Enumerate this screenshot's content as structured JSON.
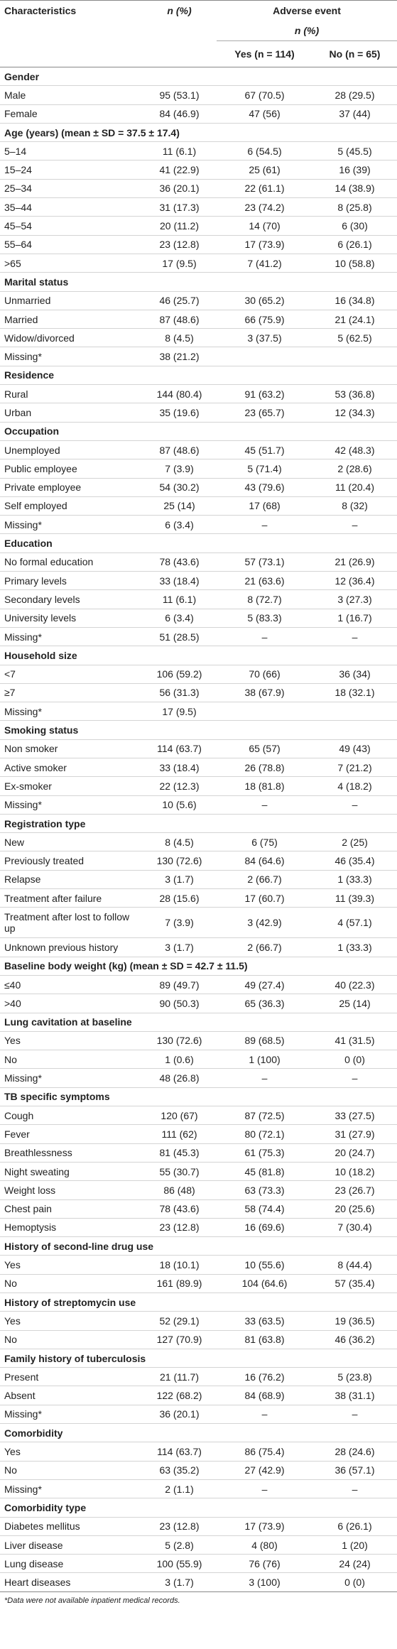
{
  "header": {
    "characteristics": "Characteristics",
    "n": "n (%)",
    "group": "Adverse event",
    "group_sub": "n (%)",
    "yes": "Yes (n = 114)",
    "no": "No (n = 65)"
  },
  "sections": [
    {
      "title": "Gender",
      "rows": [
        [
          "Male",
          "95 (53.1)",
          "67 (70.5)",
          "28 (29.5)"
        ],
        [
          "Female",
          "84 (46.9)",
          "47 (56)",
          "37 (44)"
        ]
      ]
    },
    {
      "title": "Age (years) (mean ± SD = 37.5 ± 17.4)",
      "rows": [
        [
          "5–14",
          "11 (6.1)",
          "6 (54.5)",
          "5 (45.5)"
        ],
        [
          "15–24",
          "41 (22.9)",
          "25 (61)",
          "16 (39)"
        ],
        [
          "25–34",
          "36 (20.1)",
          "22 (61.1)",
          "14 (38.9)"
        ],
        [
          "35–44",
          "31 (17.3)",
          "23 (74.2)",
          "8 (25.8)"
        ],
        [
          "45–54",
          "20 (11.2)",
          "14 (70)",
          "6 (30)"
        ],
        [
          "55–64",
          "23 (12.8)",
          "17 (73.9)",
          "6 (26.1)"
        ],
        [
          ">65",
          "17 (9.5)",
          "7 (41.2)",
          "10 (58.8)"
        ]
      ]
    },
    {
      "title": "Marital status",
      "rows": [
        [
          "Unmarried",
          "46 (25.7)",
          "30 (65.2)",
          "16 (34.8)"
        ],
        [
          "Married",
          "87 (48.6)",
          "66 (75.9)",
          "21 (24.1)"
        ],
        [
          "Widow/divorced",
          "8 (4.5)",
          "3 (37.5)",
          "5 (62.5)"
        ],
        [
          "Missing*",
          "38 (21.2)"
        ]
      ]
    },
    {
      "title": "Residence",
      "rows": [
        [
          "Rural",
          "144 (80.4)",
          "91 (63.2)",
          "53 (36.8)"
        ],
        [
          "Urban",
          "35 (19.6)",
          "23 (65.7)",
          "12 (34.3)"
        ]
      ]
    },
    {
      "title": "Occupation",
      "rows": [
        [
          "Unemployed",
          "87 (48.6)",
          "45 (51.7)",
          "42 (48.3)"
        ],
        [
          "Public employee",
          "7 (3.9)",
          "5 (71.4)",
          "2 (28.6)"
        ],
        [
          "Private employee",
          "54 (30.2)",
          "43 (79.6)",
          "11 (20.4)"
        ],
        [
          "Self employed",
          "25 (14)",
          "17 (68)",
          "8 (32)"
        ],
        [
          "Missing*",
          "6 (3.4)",
          "–",
          "–"
        ]
      ]
    },
    {
      "title": "Education",
      "rows": [
        [
          "No formal education",
          "78 (43.6)",
          "57 (73.1)",
          "21 (26.9)"
        ],
        [
          "Primary levels",
          "33 (18.4)",
          "21 (63.6)",
          "12 (36.4)"
        ],
        [
          "Secondary levels",
          "11 (6.1)",
          "8 (72.7)",
          "3 (27.3)"
        ],
        [
          "University levels",
          "6 (3.4)",
          "5 (83.3)",
          "1 (16.7)"
        ],
        [
          "Missing*",
          "51 (28.5)",
          "–",
          "–"
        ]
      ]
    },
    {
      "title": "Household size",
      "rows": [
        [
          "<7",
          "106 (59.2)",
          "70 (66)",
          "36 (34)"
        ],
        [
          "≥7",
          "56 (31.3)",
          "38 (67.9)",
          "18 (32.1)"
        ],
        [
          "Missing*",
          "17 (9.5)"
        ]
      ]
    },
    {
      "title": "Smoking status",
      "rows": [
        [
          "Non smoker",
          "114 (63.7)",
          "65 (57)",
          "49 (43)"
        ],
        [
          "Active smoker",
          "33 (18.4)",
          "26 (78.8)",
          "7 (21.2)"
        ],
        [
          "Ex-smoker",
          "22 (12.3)",
          "18 (81.8)",
          "4 (18.2)"
        ],
        [
          "Missing*",
          "10 (5.6)",
          "–",
          "–"
        ]
      ]
    },
    {
      "title": "Registration type",
      "rows": [
        [
          "New",
          "8 (4.5)",
          "6 (75)",
          "2 (25)"
        ],
        [
          "Previously treated",
          "130 (72.6)",
          "84 (64.6)",
          "46 (35.4)"
        ],
        [
          "Relapse",
          "3 (1.7)",
          "2 (66.7)",
          "1 (33.3)"
        ],
        [
          "Treatment after failure",
          "28 (15.6)",
          "17 (60.7)",
          "11 (39.3)"
        ],
        [
          "Treatment after lost to follow up",
          "7 (3.9)",
          "3 (42.9)",
          "4 (57.1)"
        ],
        [
          "Unknown previous history",
          "3 (1.7)",
          "2 (66.7)",
          "1 (33.3)"
        ]
      ]
    },
    {
      "title": "Baseline body weight (kg) (mean ± SD = 42.7 ± 11.5)",
      "rows": [
        [
          "≤40",
          "89 (49.7)",
          "49 (27.4)",
          "40 (22.3)"
        ],
        [
          ">40",
          "90 (50.3)",
          "65 (36.3)",
          "25 (14)"
        ]
      ]
    },
    {
      "title": "Lung cavitation at baseline",
      "rows": [
        [
          "Yes",
          "130 (72.6)",
          "89 (68.5)",
          "41 (31.5)"
        ],
        [
          "No",
          "1 (0.6)",
          "1 (100)",
          "0 (0)"
        ],
        [
          "Missing*",
          "48 (26.8)",
          "–",
          "–"
        ]
      ]
    },
    {
      "title": "TB specific symptoms",
      "rows": [
        [
          "Cough",
          "120 (67)",
          "87 (72.5)",
          "33 (27.5)"
        ],
        [
          "Fever",
          "111 (62)",
          "80 (72.1)",
          "31 (27.9)"
        ],
        [
          "Breathlessness",
          "81 (45.3)",
          "61 (75.3)",
          "20 (24.7)"
        ],
        [
          "Night sweating",
          "55 (30.7)",
          "45 (81.8)",
          "10 (18.2)"
        ],
        [
          "Weight loss",
          "86 (48)",
          "63 (73.3)",
          "23 (26.7)"
        ],
        [
          "Chest pain",
          "78 (43.6)",
          "58 (74.4)",
          "20 (25.6)"
        ],
        [
          "Hemoptysis",
          "23 (12.8)",
          "16 (69.6)",
          "7 (30.4)"
        ]
      ]
    },
    {
      "title": "History of second-line drug use",
      "rows": [
        [
          "Yes",
          "18 (10.1)",
          "10 (55.6)",
          "8 (44.4)"
        ],
        [
          "No",
          "161 (89.9)",
          "104 (64.6)",
          "57 (35.4)"
        ]
      ]
    },
    {
      "title": "History of streptomycin use",
      "rows": [
        [
          "Yes",
          "52 (29.1)",
          "33 (63.5)",
          "19 (36.5)"
        ],
        [
          "No",
          "127 (70.9)",
          "81 (63.8)",
          "46 (36.2)"
        ]
      ]
    },
    {
      "title": "Family history of tuberculosis",
      "rows": [
        [
          "Present",
          "21 (11.7)",
          "16 (76.2)",
          "5 (23.8)"
        ],
        [
          "Absent",
          "122 (68.2)",
          "84 (68.9)",
          "38 (31.1)"
        ],
        [
          "Missing*",
          "36 (20.1)",
          "–",
          "–"
        ]
      ]
    },
    {
      "title": "Comorbidity",
      "rows": [
        [
          "Yes",
          "114 (63.7)",
          "86 (75.4)",
          "28 (24.6)"
        ],
        [
          "No",
          "63 (35.2)",
          "27 (42.9)",
          "36 (57.1)"
        ],
        [
          "Missing*",
          "2 (1.1)",
          "–",
          "–"
        ]
      ]
    },
    {
      "title": "Comorbidity type",
      "rows": [
        [
          "Diabetes mellitus",
          "23 (12.8)",
          "17 (73.9)",
          "6 (26.1)"
        ],
        [
          "Liver disease",
          "5 (2.8)",
          "4 (80)",
          "1 (20)"
        ],
        [
          "Lung disease",
          "100 (55.9)",
          "76 (76)",
          "24 (24)"
        ],
        [
          "Heart diseases",
          "3 (1.7)",
          "3 (100)",
          "0 (0)"
        ]
      ]
    }
  ],
  "footnote": "*Data were not available inpatient medical records."
}
